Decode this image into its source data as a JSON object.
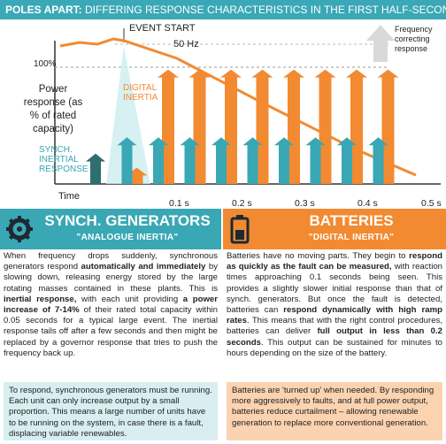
{
  "banner": {
    "lead": "POLES APART:",
    "rest": " DIFFERING RESPONSE CHARACTERISTICS IN THE FIRST HALF-SECOND"
  },
  "chart_data": {
    "type": "bar",
    "title": "POLES APART: DIFFERING RESPONSE CHARACTERISTICS IN THE FIRST HALF-SECOND",
    "xlabel": "Time",
    "ylabel": "Power response (as % of rated capacity)",
    "x_ticks": [
      "0.1 s",
      "0.2 s",
      "0.3 s",
      "0.4 s",
      "0.5 s"
    ],
    "y_tick": "100%",
    "ref_line": "50 Hz",
    "event_label": "EVENT START",
    "legend_arrow": "Frequency correcting response",
    "series": [
      {
        "name": "SYNCH. INERTIAL RESPONSE",
        "color": "#39a7b4",
        "values": [
          26,
          40,
          40,
          40,
          40,
          40,
          40,
          40,
          40,
          40
        ]
      },
      {
        "name": "DIGITAL INERTIA",
        "color": "#f28a32",
        "values": [
          0,
          14,
          98,
          98,
          98,
          98,
          98,
          98,
          98,
          98
        ]
      }
    ],
    "dark_arrow": {
      "name": "synch. initial",
      "color": "#2f6e6e"
    }
  },
  "left": {
    "title": "SYNCH. GENERATORS",
    "subtitle": "\"ANALOGUE INERTIA\"",
    "p1": "When frequency drops suddenly, synchronous generators respond ",
    "p1b": "automatically and immediately",
    "p2": " by slowing down, releasing energy stored by the large rotating masses contained in these plants. This is ",
    "p2b": "inertial response,",
    "p3": " with each unit providing ",
    "p3b": "a power increase of 7-14%",
    "p4": " of their rated total capacity within 0.05 seconds for a typical large event. The inertial response tails off after a few seconds and then might be replaced by a governor response that tries to push the frequency back up.",
    "note": "To respond, synchronous generators must be running. Each unit can only increase output by a small proportion. This means a large number of units have to be running on the system, in case there is a fault, displacing variable renewables."
  },
  "right": {
    "title": "BATTERIES",
    "subtitle": "\"DIGITAL INERTIA\"",
    "p1": "Batteries have no moving parts. They begin to ",
    "p1b": "respond as quickly as the fault can be measured,",
    "p2": " with reaction times approaching 0.1 seconds being seen. This provides a slightly slower initial response than that of synch. generators. But once the fault is detected, batteries can ",
    "p2b": "respond dynamically with high ramp rates",
    "p3": ". This means that with the right control procedures, batteries can deliver ",
    "p3b": "full output in less than 0.2 seconds",
    "p4": ". This output can be sustained for minutes to hours depending on the size of the battery.",
    "note": "Batteries are 'turned up' when needed. By responding more aggressively to faults, and at full power output, batteries reduce curtailment – allowing renewable generation to replace more conventional generation."
  }
}
